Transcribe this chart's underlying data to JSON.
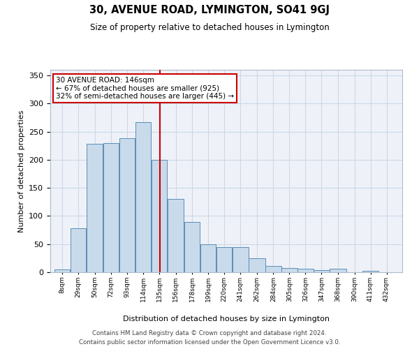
{
  "title": "30, AVENUE ROAD, LYMINGTON, SO41 9GJ",
  "subtitle": "Size of property relative to detached houses in Lymington",
  "xlabel": "Distribution of detached houses by size in Lymington",
  "ylabel": "Number of detached properties",
  "bar_color": "#c9daea",
  "bar_edge_color": "#5b8db8",
  "grid_color": "#ccd8e8",
  "background_color": "#eef2f8",
  "annotation_text": "30 AVENUE ROAD: 146sqm\n← 67% of detached houses are smaller (925)\n32% of semi-detached houses are larger (445) →",
  "vline_x": 146,
  "vline_color": "#cc0000",
  "annotation_box_color": "#ffffff",
  "annotation_box_edge": "#cc0000",
  "categories": [
    "8sqm",
    "29sqm",
    "50sqm",
    "72sqm",
    "93sqm",
    "114sqm",
    "135sqm",
    "156sqm",
    "178sqm",
    "199sqm",
    "220sqm",
    "241sqm",
    "262sqm",
    "284sqm",
    "305sqm",
    "326sqm",
    "347sqm",
    "368sqm",
    "390sqm",
    "411sqm",
    "432sqm"
  ],
  "bin_edges": [
    8,
    29,
    50,
    72,
    93,
    114,
    135,
    156,
    178,
    199,
    220,
    241,
    262,
    284,
    305,
    326,
    347,
    368,
    390,
    411,
    432,
    453
  ],
  "values": [
    5,
    78,
    228,
    230,
    238,
    267,
    200,
    130,
    90,
    50,
    45,
    45,
    25,
    11,
    7,
    6,
    4,
    6,
    0,
    3,
    0
  ],
  "footer_line1": "Contains HM Land Registry data © Crown copyright and database right 2024.",
  "footer_line2": "Contains public sector information licensed under the Open Government Licence v3.0.",
  "ylim": [
    0,
    360
  ],
  "yticks": [
    0,
    50,
    100,
    150,
    200,
    250,
    300,
    350
  ]
}
